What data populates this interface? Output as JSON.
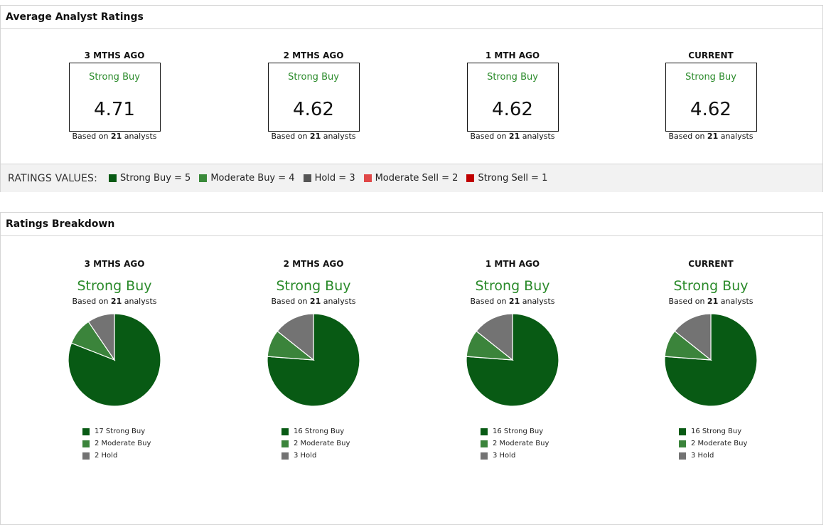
{
  "avg_panel": {
    "title": "Average Analyst Ratings",
    "columns": [
      {
        "period": "3 MTHS AGO",
        "rating": "Strong Buy",
        "score": "4.71",
        "based_prefix": "Based on ",
        "analysts": "21",
        "based_suffix": " analysts"
      },
      {
        "period": "2 MTHS AGO",
        "rating": "Strong Buy",
        "score": "4.62",
        "based_prefix": "Based on ",
        "analysts": "21",
        "based_suffix": " analysts"
      },
      {
        "period": "1 MTH AGO",
        "rating": "Strong Buy",
        "score": "4.62",
        "based_prefix": "Based on ",
        "analysts": "21",
        "based_suffix": " analysts"
      },
      {
        "period": "CURRENT",
        "rating": "Strong Buy",
        "score": "4.62",
        "based_prefix": "Based on ",
        "analysts": "21",
        "based_suffix": " analysts"
      }
    ],
    "legend_title": "RATINGS VALUES:",
    "legend": [
      {
        "label": "Strong Buy = 5",
        "color": "#085a14"
      },
      {
        "label": "Moderate Buy = 4",
        "color": "#3a8a3a"
      },
      {
        "label": "Hold = 3",
        "color": "#555555"
      },
      {
        "label": "Moderate Sell = 2",
        "color": "#e04848"
      },
      {
        "label": "Strong Sell = 1",
        "color": "#c00000"
      }
    ]
  },
  "breakdown_panel": {
    "title": "Ratings Breakdown"
  },
  "colors": {
    "strong_buy": "#085a14",
    "moderate_buy": "#3b843b",
    "hold": "#737373",
    "rating_text": "#2a8a2a"
  },
  "chart_data": [
    {
      "type": "pie",
      "title": "3 MTHS AGO",
      "subtitle": "Strong Buy",
      "note_prefix": "Based on ",
      "analysts": "21",
      "note_suffix": " analysts",
      "slices": [
        {
          "label": "17 Strong Buy",
          "value": 17,
          "color": "#085a14"
        },
        {
          "label": "2 Moderate Buy",
          "value": 2,
          "color": "#3b843b"
        },
        {
          "label": "2 Hold",
          "value": 2,
          "color": "#737373"
        }
      ]
    },
    {
      "type": "pie",
      "title": "2 MTHS AGO",
      "subtitle": "Strong Buy",
      "note_prefix": "Based on ",
      "analysts": "21",
      "note_suffix": " analysts",
      "slices": [
        {
          "label": "16 Strong Buy",
          "value": 16,
          "color": "#085a14"
        },
        {
          "label": "2 Moderate Buy",
          "value": 2,
          "color": "#3b843b"
        },
        {
          "label": "3 Hold",
          "value": 3,
          "color": "#737373"
        }
      ]
    },
    {
      "type": "pie",
      "title": "1 MTH AGO",
      "subtitle": "Strong Buy",
      "note_prefix": "Based on ",
      "analysts": "21",
      "note_suffix": " analysts",
      "slices": [
        {
          "label": "16 Strong Buy",
          "value": 16,
          "color": "#085a14"
        },
        {
          "label": "2 Moderate Buy",
          "value": 2,
          "color": "#3b843b"
        },
        {
          "label": "3 Hold",
          "value": 3,
          "color": "#737373"
        }
      ]
    },
    {
      "type": "pie",
      "title": "CURRENT",
      "subtitle": "Strong Buy",
      "note_prefix": "Based on ",
      "analysts": "21",
      "note_suffix": " analysts",
      "slices": [
        {
          "label": "16 Strong Buy",
          "value": 16,
          "color": "#085a14"
        },
        {
          "label": "2 Moderate Buy",
          "value": 2,
          "color": "#3b843b"
        },
        {
          "label": "3 Hold",
          "value": 3,
          "color": "#737373"
        }
      ]
    }
  ]
}
